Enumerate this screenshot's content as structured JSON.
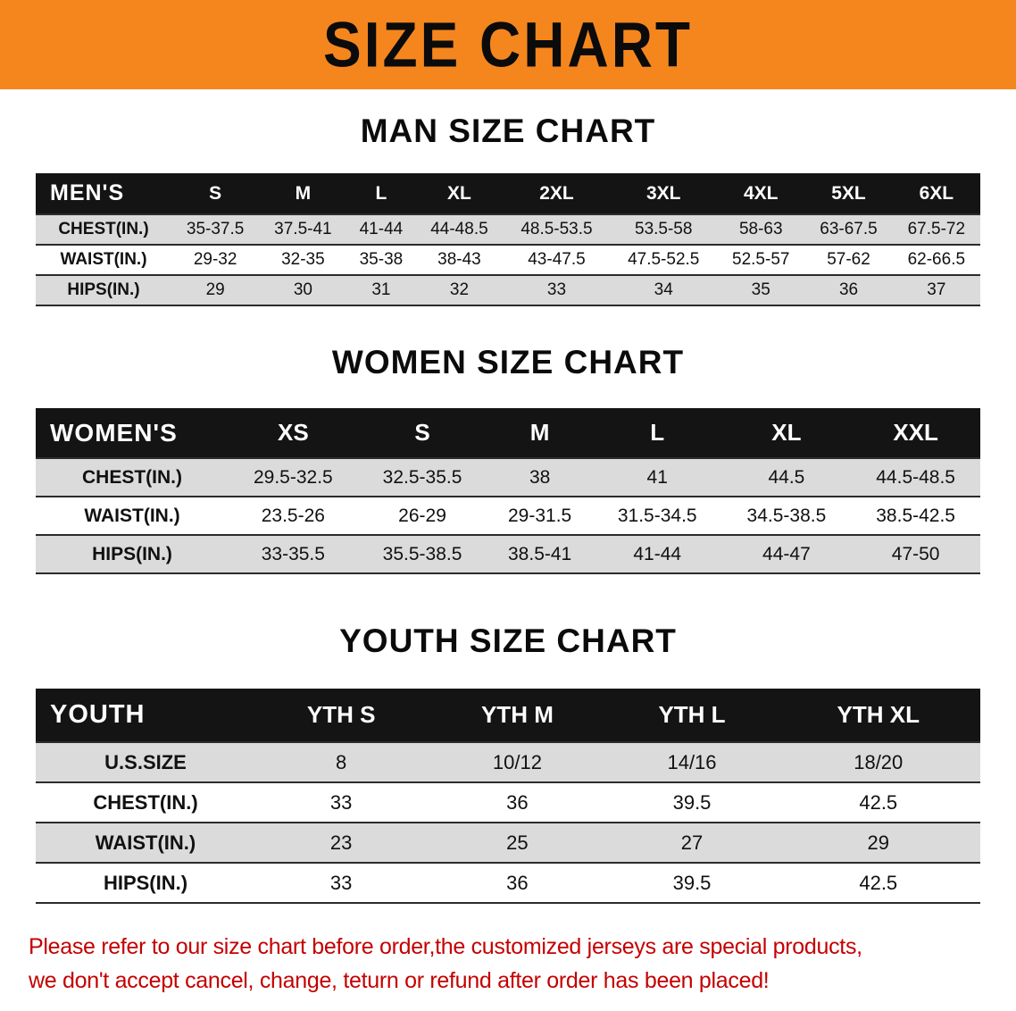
{
  "colors": {
    "banner_bg": "#F5861E",
    "header_bg": "#141414",
    "shade_row": "#DBDBDB",
    "disclaimer_red": "#C40000"
  },
  "banner": {
    "title": "SIZE CHART"
  },
  "sections": [
    {
      "heading": "MAN SIZE CHART",
      "table": {
        "label": "MEN'S",
        "columns": [
          "S",
          "M",
          "L",
          "XL",
          "2XL",
          "3XL",
          "4XL",
          "5XL",
          "6XL"
        ],
        "rows": [
          {
            "label": "CHEST(IN.)",
            "values": [
              "35-37.5",
              "37.5-41",
              "41-44",
              "44-48.5",
              "48.5-53.5",
              "53.5-58",
              "58-63",
              "63-67.5",
              "67.5-72"
            ]
          },
          {
            "label": "WAIST(IN.)",
            "values": [
              "29-32",
              "32-35",
              "35-38",
              "38-43",
              "43-47.5",
              "47.5-52.5",
              "52.5-57",
              "57-62",
              "62-66.5"
            ]
          },
          {
            "label": "HIPS(IN.)",
            "values": [
              "29",
              "30",
              "31",
              "32",
              "33",
              "34",
              "35",
              "36",
              "37"
            ]
          }
        ]
      }
    },
    {
      "heading": "WOMEN SIZE CHART",
      "table": {
        "label": "WOMEN'S",
        "columns": [
          "XS",
          "S",
          "M",
          "L",
          "XL",
          "XXL"
        ],
        "rows": [
          {
            "label": "CHEST(IN.)",
            "values": [
              "29.5-32.5",
              "32.5-35.5",
              "38",
              "41",
              "44.5",
              "44.5-48.5"
            ]
          },
          {
            "label": "WAIST(IN.)",
            "values": [
              "23.5-26",
              "26-29",
              "29-31.5",
              "31.5-34.5",
              "34.5-38.5",
              "38.5-42.5"
            ]
          },
          {
            "label": "HIPS(IN.)",
            "values": [
              "33-35.5",
              "35.5-38.5",
              "38.5-41",
              "41-44",
              "44-47",
              "47-50"
            ]
          }
        ]
      }
    },
    {
      "heading": "YOUTH SIZE CHART",
      "table": {
        "label": "YOUTH",
        "columns": [
          "YTH S",
          "YTH M",
          "YTH L",
          "YTH XL"
        ],
        "rows": [
          {
            "label": "U.S.SIZE",
            "values": [
              "8",
              "10/12",
              "14/16",
              "18/20"
            ]
          },
          {
            "label": "CHEST(IN.)",
            "values": [
              "33",
              "36",
              "39.5",
              "42.5"
            ]
          },
          {
            "label": "WAIST(IN.)",
            "values": [
              "23",
              "25",
              "27",
              "29"
            ]
          },
          {
            "label": "HIPS(IN.)",
            "values": [
              "33",
              "36",
              "39.5",
              "42.5"
            ]
          }
        ]
      }
    }
  ],
  "disclaimer": {
    "line1": "Please refer to our size chart before order,the customized jerseys are special products,",
    "line2": "we don't accept cancel, change, teturn or refund after order has been placed!"
  }
}
